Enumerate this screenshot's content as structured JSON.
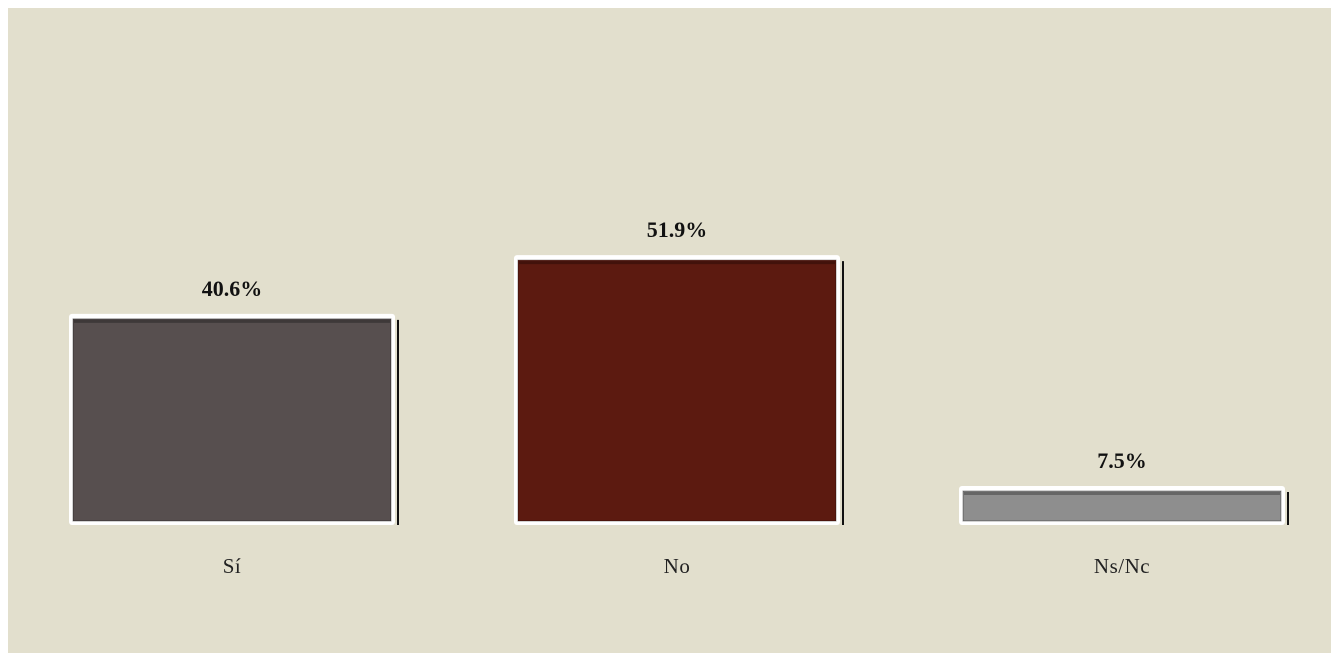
{
  "chart_data": {
    "type": "bar",
    "categories": [
      "Sí",
      "No",
      "Ns/Nc"
    ],
    "values": [
      40.6,
      51.9,
      7.5
    ],
    "value_labels": [
      "40.6%",
      "51.9%",
      "7.5%"
    ],
    "colors": [
      "#574f4f",
      "#5c1a10",
      "#8e8e8e"
    ],
    "title": "",
    "xlabel": "",
    "ylabel": "",
    "ylim": [
      0,
      100
    ],
    "grid": false,
    "legend": "none",
    "background": "#e2dfcd"
  }
}
